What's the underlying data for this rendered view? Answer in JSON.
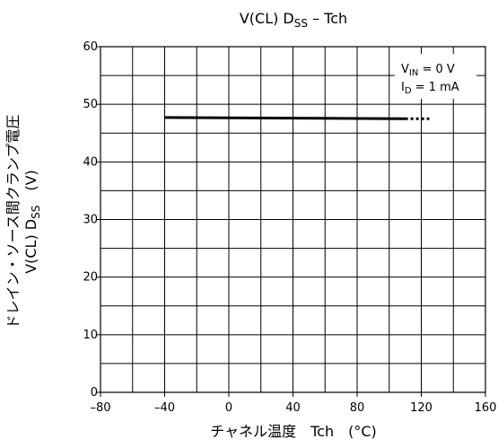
{
  "chart_data": {
    "type": "line",
    "title": {
      "main": "V(CL) D",
      "sub": "SS",
      "tail": " – Tch"
    },
    "xlabel": "チャネル温度　Tch　(°C)",
    "ylabel": {
      "line1": "ドレイン・ソース間クランプ電圧",
      "line2_main": "V(CL) D",
      "line2_sub": "SS",
      "line2_tail": "　(V)"
    },
    "xlim": [
      -80,
      160
    ],
    "ylim": [
      0,
      60
    ],
    "x_ticks": [
      -80,
      -40,
      0,
      40,
      80,
      120,
      160
    ],
    "y_ticks": [
      0,
      10,
      20,
      30,
      40,
      50,
      60
    ],
    "x_tick_labels": [
      "–80",
      "–40",
      "0",
      "40",
      "80",
      "120",
      "160"
    ],
    "y_tick_labels": [
      "0",
      "10",
      "20",
      "30",
      "40",
      "50",
      "60"
    ],
    "x_grid_step": 20,
    "y_grid_step": 5,
    "grid": true,
    "series": [
      {
        "style": "solid",
        "x": [
          -40,
          110
        ],
        "y": [
          47.7,
          47.5
        ]
      },
      {
        "style": "dotted",
        "x": [
          110,
          125
        ],
        "y": [
          47.5,
          47.5
        ]
      }
    ],
    "conditions": [
      {
        "main": "V",
        "sub": "IN",
        "rest": " = 0 V"
      },
      {
        "main": "I",
        "sub": "D",
        "rest": " = 1 mA"
      }
    ],
    "legend_position": "top-right"
  }
}
